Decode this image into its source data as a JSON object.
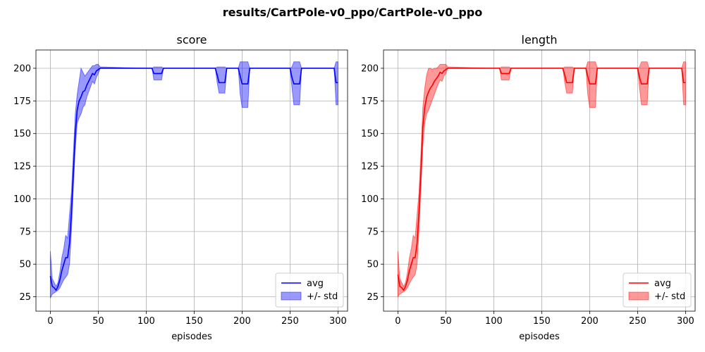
{
  "suptitle": "results/CartPole-v0_ppo/CartPole-v0_ppo",
  "chart_data": [
    {
      "type": "line",
      "title": "score",
      "xlabel": "episodes",
      "ylabel": "",
      "xlim": [
        -15,
        310
      ],
      "ylim": [
        14,
        214
      ],
      "xticks": [
        0,
        50,
        100,
        150,
        200,
        250,
        300
      ],
      "yticks": [
        25,
        50,
        75,
        100,
        125,
        150,
        175,
        200
      ],
      "grid": true,
      "legend": "bottom-right",
      "colors": {
        "line": "#0000ff",
        "band": "#0000ff"
      },
      "series": [
        {
          "name": "avg",
          "x": [
            0,
            2,
            4,
            6,
            8,
            10,
            12,
            14,
            16,
            18,
            20,
            22,
            24,
            26,
            28,
            30,
            32,
            34,
            36,
            38,
            40,
            42,
            44,
            46,
            48,
            50,
            52,
            54,
            100,
            106,
            108,
            116,
            118,
            172,
            174,
            176,
            182,
            184,
            196,
            198,
            200,
            206,
            208,
            250,
            252,
            254,
            260,
            262,
            296,
            298,
            300
          ],
          "avg": [
            41,
            33,
            32,
            30,
            33,
            38,
            45,
            50,
            55,
            55,
            66,
            90,
            120,
            150,
            168,
            175,
            178,
            182,
            183,
            187,
            190,
            193,
            196,
            195,
            198,
            199,
            200,
            200,
            200,
            200,
            196,
            196,
            200,
            200,
            195,
            189,
            189,
            200,
            200,
            194,
            188,
            188,
            200,
            200,
            193,
            188,
            188,
            200,
            200,
            189,
            189
          ],
          "lower": [
            24,
            27,
            28,
            29,
            30,
            32,
            35,
            38,
            40,
            42,
            50,
            75,
            108,
            138,
            158,
            162,
            165,
            170,
            172,
            178,
            182,
            186,
            190,
            188,
            193,
            196,
            200,
            200,
            200,
            200,
            191,
            191,
            200,
            200,
            189,
            181,
            181,
            200,
            200,
            180,
            170,
            170,
            200,
            200,
            185,
            172,
            172,
            200,
            200,
            172,
            172
          ],
          "upper": [
            60,
            39,
            36,
            33,
            36,
            44,
            55,
            62,
            72,
            70,
            88,
            105,
            135,
            165,
            180,
            190,
            200,
            197,
            194,
            196,
            198,
            200,
            202,
            202,
            203,
            203,
            201,
            201,
            200,
            200,
            201,
            201,
            200,
            200,
            201,
            201,
            201,
            200,
            200,
            205,
            205,
            205,
            200,
            200,
            201,
            205,
            205,
            200,
            200,
            205,
            205
          ]
        }
      ],
      "band_name": "+/- std"
    },
    {
      "type": "line",
      "title": "length",
      "xlabel": "episodes",
      "ylabel": "",
      "xlim": [
        -15,
        310
      ],
      "ylim": [
        14,
        214
      ],
      "xticks": [
        0,
        50,
        100,
        150,
        200,
        250,
        300
      ],
      "yticks": [
        25,
        50,
        75,
        100,
        125,
        150,
        175,
        200
      ],
      "grid": true,
      "legend": "bottom-right",
      "colors": {
        "line": "#ff0000",
        "band": "#ff0000"
      },
      "series": [
        {
          "name": "avg",
          "x": [
            0,
            2,
            4,
            6,
            8,
            10,
            12,
            14,
            16,
            18,
            20,
            22,
            24,
            26,
            28,
            30,
            32,
            34,
            36,
            38,
            40,
            42,
            44,
            46,
            48,
            50,
            52,
            54,
            100,
            106,
            108,
            116,
            118,
            172,
            174,
            176,
            182,
            184,
            196,
            198,
            200,
            206,
            208,
            250,
            252,
            254,
            260,
            262,
            296,
            298,
            300
          ],
          "avg": [
            42,
            33,
            32,
            30,
            33,
            38,
            45,
            50,
            55,
            55,
            66,
            90,
            120,
            155,
            170,
            178,
            182,
            185,
            187,
            190,
            192,
            194,
            197,
            196,
            198,
            199,
            200,
            200,
            200,
            200,
            196,
            196,
            200,
            200,
            195,
            189,
            189,
            200,
            200,
            194,
            188,
            188,
            200,
            200,
            193,
            188,
            188,
            200,
            200,
            189,
            189
          ],
          "lower": [
            25,
            27,
            28,
            29,
            30,
            32,
            35,
            38,
            40,
            42,
            50,
            75,
            108,
            140,
            158,
            165,
            168,
            172,
            176,
            180,
            184,
            188,
            191,
            190,
            194,
            196,
            200,
            200,
            200,
            200,
            191,
            191,
            200,
            200,
            189,
            181,
            181,
            200,
            200,
            180,
            170,
            170,
            200,
            200,
            185,
            172,
            172,
            200,
            200,
            172,
            172
          ],
          "upper": [
            60,
            39,
            36,
            33,
            36,
            44,
            55,
            62,
            72,
            70,
            88,
            105,
            135,
            170,
            185,
            195,
            200,
            200,
            199,
            200,
            200,
            201,
            203,
            203,
            203,
            203,
            201,
            201,
            200,
            200,
            201,
            201,
            200,
            200,
            201,
            201,
            201,
            200,
            200,
            205,
            205,
            205,
            200,
            200,
            201,
            205,
            205,
            200,
            200,
            205,
            205
          ]
        }
      ],
      "band_name": "+/- std"
    }
  ]
}
